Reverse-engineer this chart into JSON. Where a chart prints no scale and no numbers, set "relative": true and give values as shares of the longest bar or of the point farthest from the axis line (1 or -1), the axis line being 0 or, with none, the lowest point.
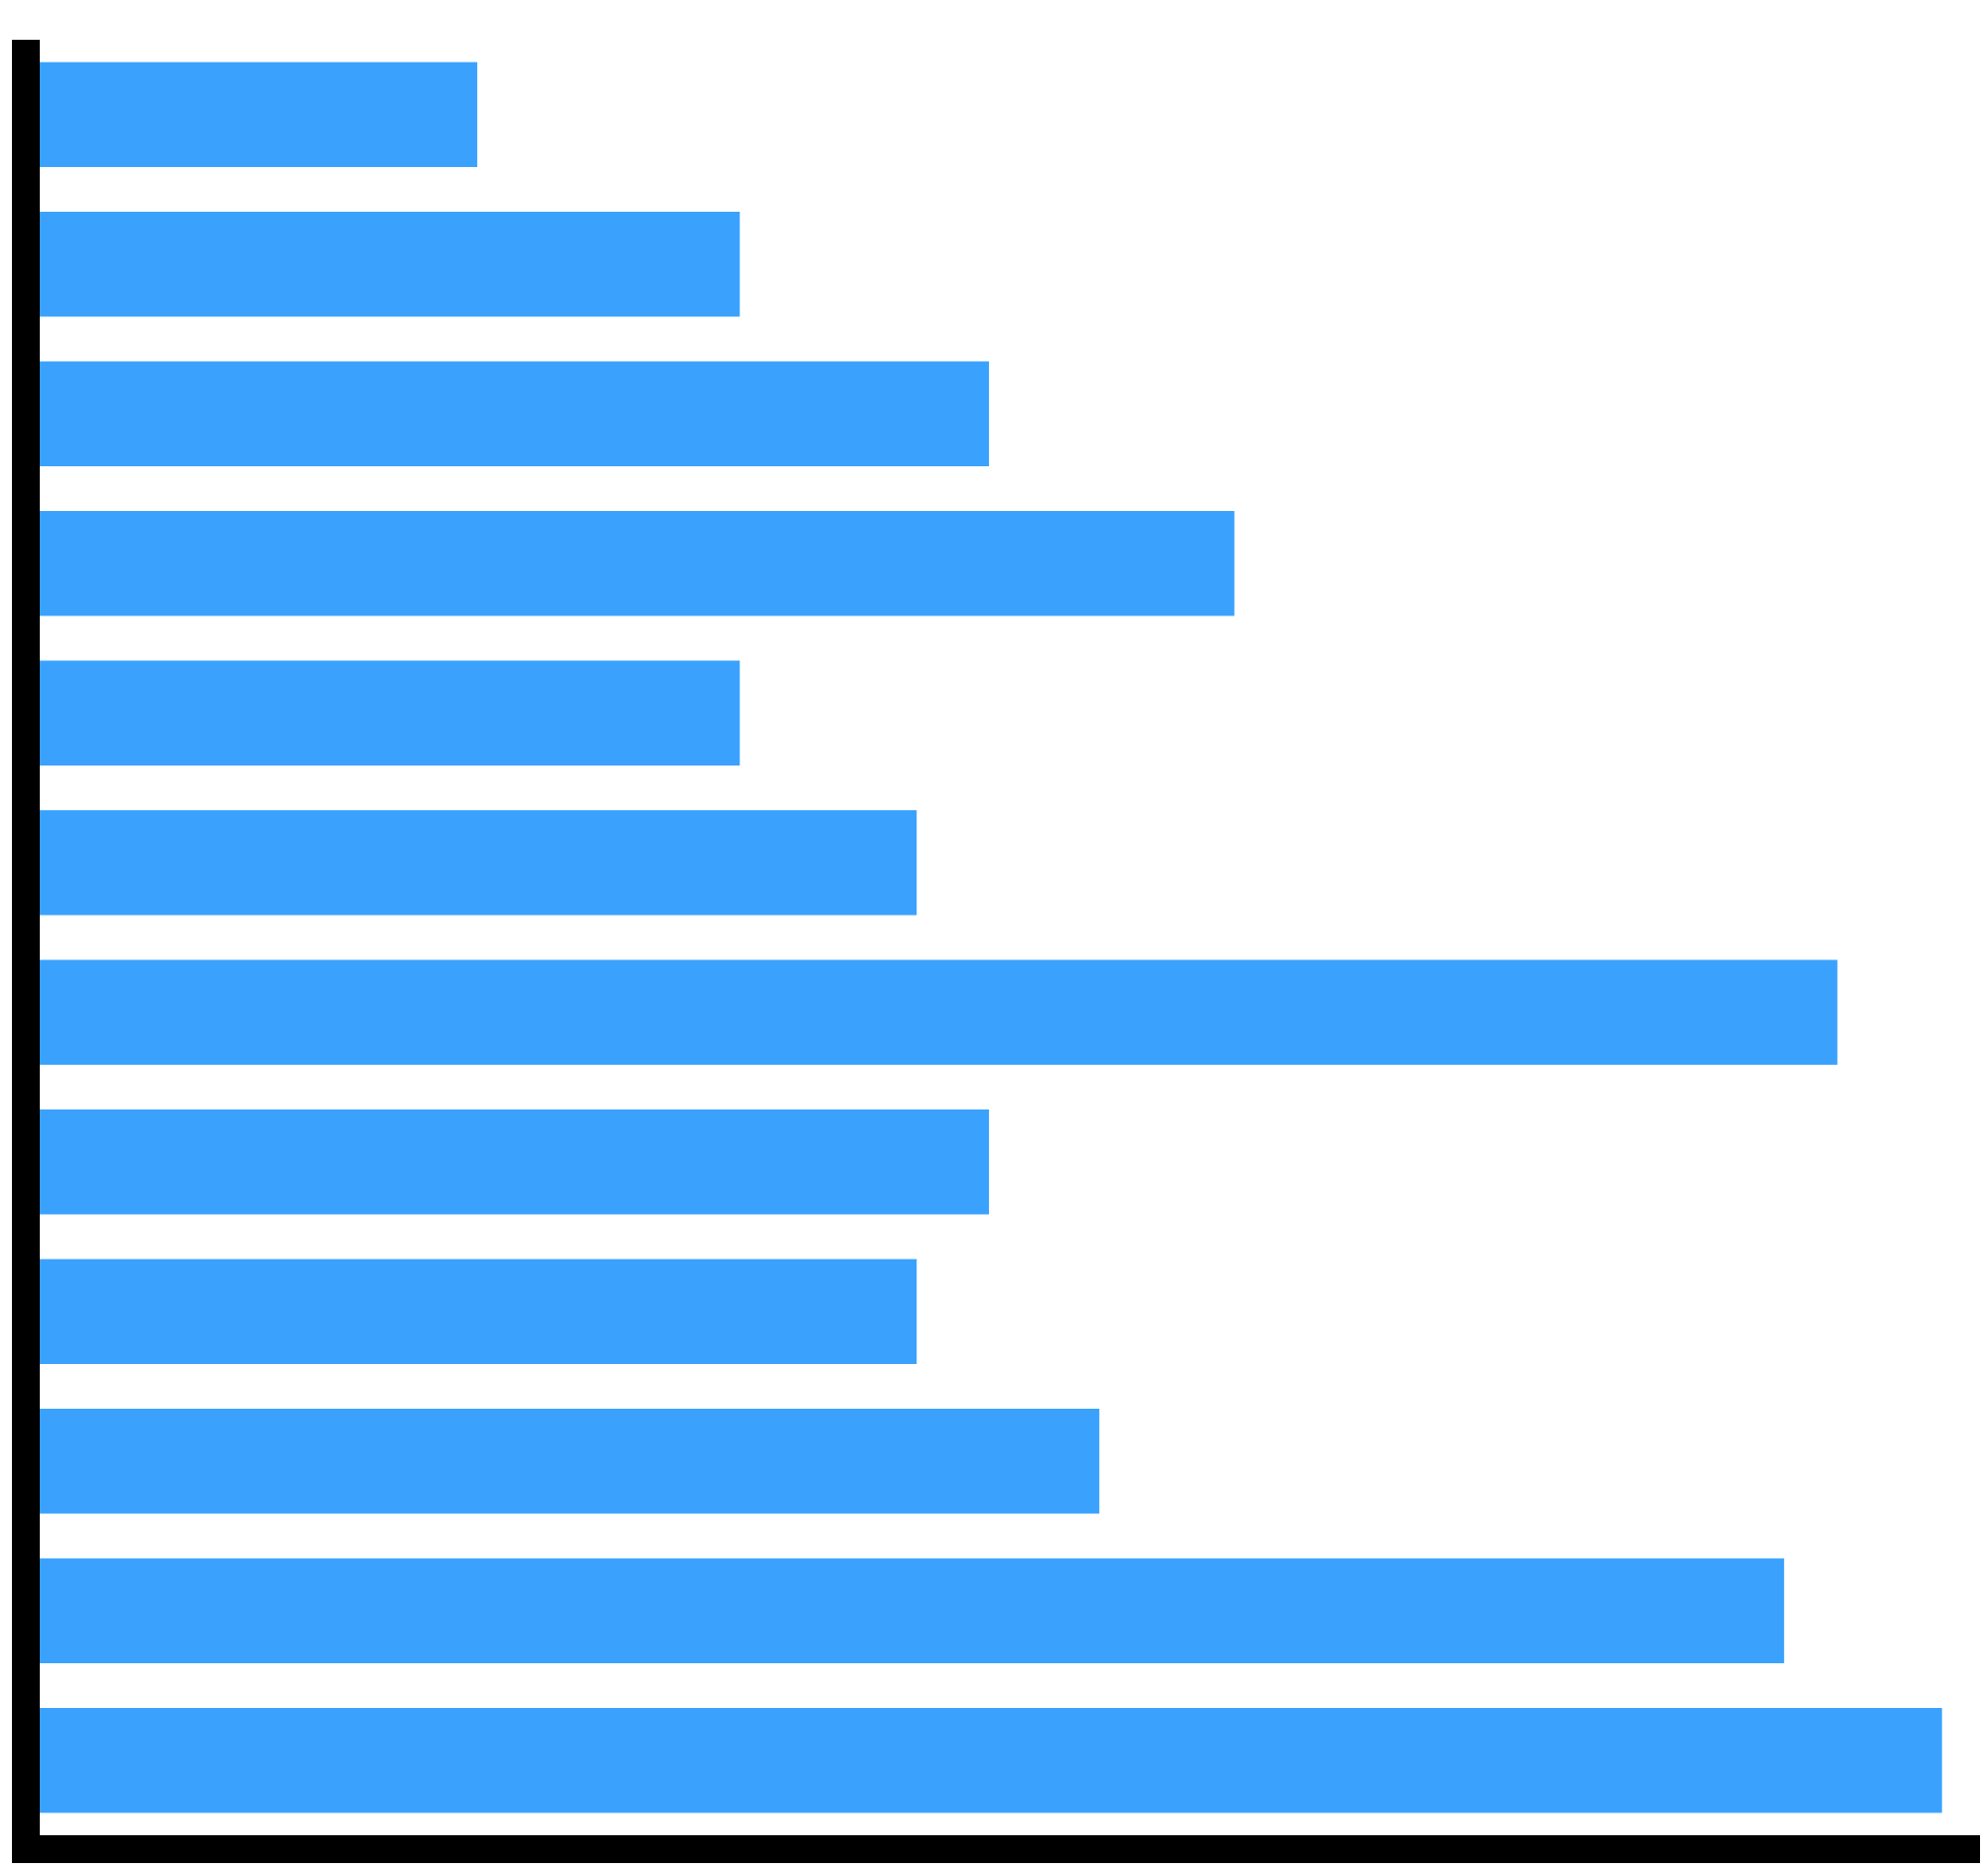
{
  "chart_data": {
    "type": "bar",
    "orientation": "horizontal",
    "relative": true,
    "categories": [
      null,
      null,
      null,
      null,
      null,
      null,
      null,
      null,
      null,
      null,
      null,
      null
    ],
    "values": [
      0.23,
      0.368,
      0.499,
      0.628,
      0.368,
      0.461,
      0.945,
      0.499,
      0.461,
      0.557,
      0.917,
      1
    ],
    "color": "#3aa2fd"
  }
}
